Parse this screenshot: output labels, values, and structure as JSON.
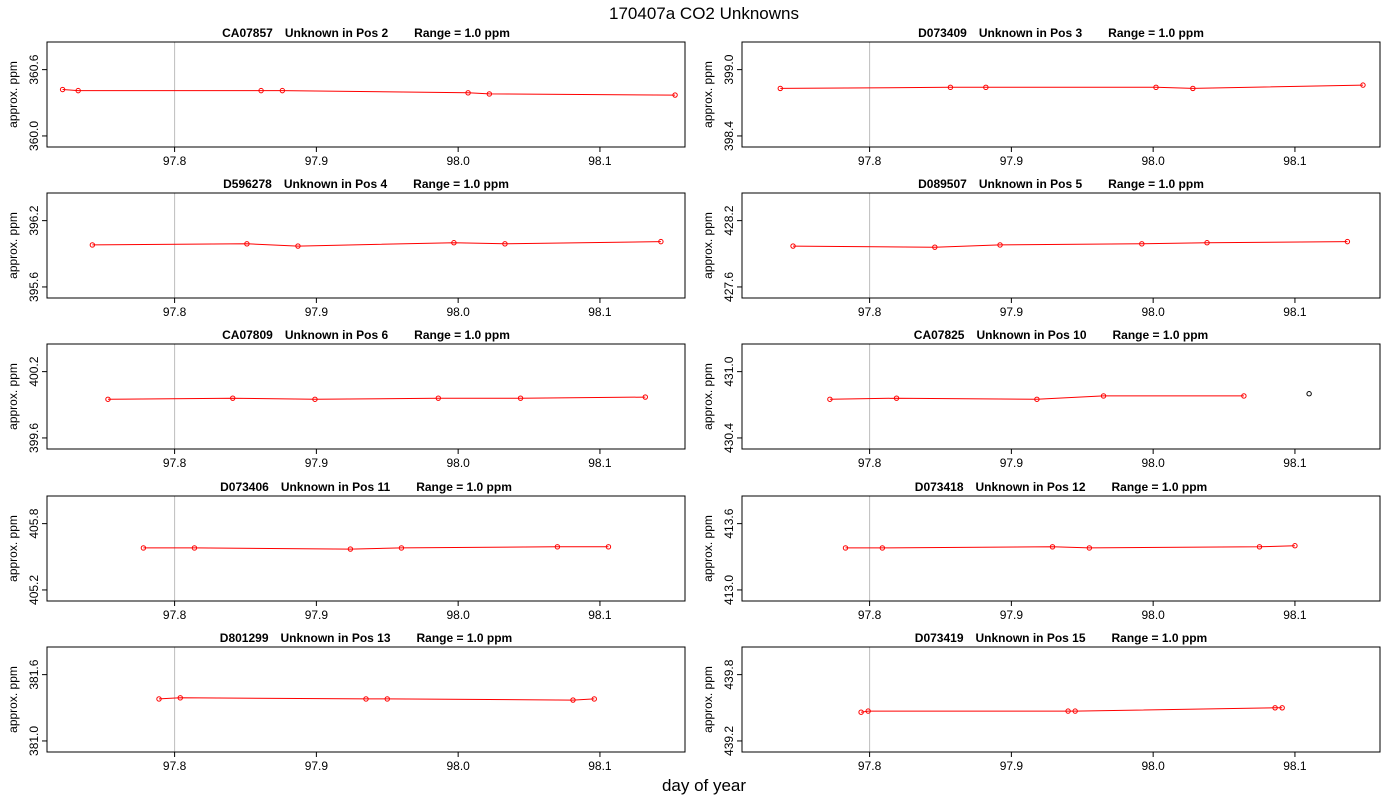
{
  "title": "170407a  CO2 Unknowns",
  "xlabel": "day of year",
  "colors": {
    "series": "#ff0000",
    "frame": "#000000",
    "vline": "#bebebe"
  },
  "chart_data": [
    {
      "type": "line",
      "title_parts": [
        "CA07857",
        "Unknown in Pos 2",
        "Range = 1.0 ppm"
      ],
      "ylabel": "approx. ppm",
      "xlim": [
        97.71,
        98.16
      ],
      "ylim": [
        359.9,
        360.85
      ],
      "xticks": [
        97.8,
        97.9,
        98.0,
        98.1
      ],
      "xtick_labels": [
        "97.8",
        "97.9",
        "98.0",
        "98.1"
      ],
      "yticks": [
        360.0,
        360.6
      ],
      "ytick_labels": [
        "360.0",
        "360.6"
      ],
      "vlines": [
        97.8
      ],
      "x": [
        97.721,
        97.732,
        97.861,
        97.876,
        98.007,
        98.022,
        98.153
      ],
      "y": [
        360.42,
        360.41,
        360.41,
        360.41,
        360.39,
        360.38,
        360.37
      ]
    },
    {
      "type": "line",
      "title_parts": [
        "D073409",
        "Unknown in Pos 3",
        "Range = 1.0 ppm"
      ],
      "ylabel": "approx. ppm",
      "xlim": [
        97.71,
        98.16
      ],
      "ylim": [
        398.3,
        399.25
      ],
      "xticks": [
        97.8,
        97.9,
        98.0,
        98.1
      ],
      "xtick_labels": [
        "97.8",
        "97.9",
        "98.0",
        "98.1"
      ],
      "yticks": [
        398.4,
        399.0
      ],
      "ytick_labels": [
        "398.4",
        "399.0"
      ],
      "vlines": [
        97.8,
        98.16
      ],
      "x": [
        97.737,
        97.857,
        97.882,
        98.002,
        98.028,
        98.148
      ],
      "y": [
        398.83,
        398.84,
        398.84,
        398.84,
        398.83,
        398.86
      ]
    },
    {
      "type": "line",
      "title_parts": [
        "D596278",
        "Unknown in Pos 4",
        "Range = 1.0 ppm"
      ],
      "ylabel": "approx. ppm",
      "xlim": [
        97.71,
        98.16
      ],
      "ylim": [
        395.5,
        396.45
      ],
      "xticks": [
        97.8,
        97.9,
        98.0,
        98.1
      ],
      "xtick_labels": [
        "97.8",
        "97.9",
        "98.0",
        "98.1"
      ],
      "yticks": [
        395.6,
        396.2
      ],
      "ytick_labels": [
        "395.6",
        "396.2"
      ],
      "vlines": [
        97.8,
        98.16
      ],
      "x": [
        97.742,
        97.851,
        97.887,
        97.997,
        98.033,
        98.143
      ],
      "y": [
        395.98,
        395.99,
        395.97,
        396.0,
        395.99,
        396.01
      ]
    },
    {
      "type": "line",
      "title_parts": [
        "D089507",
        "Unknown in Pos 5",
        "Range = 1.0 ppm"
      ],
      "ylabel": "approx. ppm",
      "xlim": [
        97.71,
        98.16
      ],
      "ylim": [
        427.5,
        428.45
      ],
      "xticks": [
        97.8,
        97.9,
        98.0,
        98.1
      ],
      "xtick_labels": [
        "97.8",
        "97.9",
        "98.0",
        "98.1"
      ],
      "yticks": [
        427.6,
        428.2
      ],
      "ytick_labels": [
        "427.6",
        "428.2"
      ],
      "vlines": [
        97.8,
        98.16
      ],
      "x": [
        97.746,
        97.846,
        97.892,
        97.992,
        98.038,
        98.137
      ],
      "y": [
        427.97,
        427.96,
        427.98,
        427.99,
        428.0,
        428.01
      ]
    },
    {
      "type": "line",
      "title_parts": [
        "CA07809",
        "Unknown in Pos 6",
        "Range = 1.0 ppm"
      ],
      "ylabel": "approx. ppm",
      "xlim": [
        97.71,
        98.16
      ],
      "ylim": [
        399.5,
        400.45
      ],
      "xticks": [
        97.8,
        97.9,
        98.0,
        98.1
      ],
      "xtick_labels": [
        "97.8",
        "97.9",
        "98.0",
        "98.1"
      ],
      "yticks": [
        399.6,
        400.2
      ],
      "ytick_labels": [
        "399.6",
        "400.2"
      ],
      "vlines": [
        97.8,
        98.16
      ],
      "x": [
        97.753,
        97.841,
        97.899,
        97.986,
        98.044,
        98.132
      ],
      "y": [
        399.95,
        399.96,
        399.95,
        399.96,
        399.96,
        399.97
      ]
    },
    {
      "type": "line",
      "title_parts": [
        "CA07825",
        "Unknown in Pos 10",
        "Range = 1.0 ppm"
      ],
      "ylabel": "approx. ppm",
      "xlim": [
        97.71,
        98.16
      ],
      "ylim": [
        430.3,
        431.25
      ],
      "xticks": [
        97.8,
        97.9,
        98.0,
        98.1
      ],
      "xtick_labels": [
        "97.8",
        "97.9",
        "98.0",
        "98.1"
      ],
      "yticks": [
        430.4,
        431.0
      ],
      "ytick_labels": [
        "430.4",
        "431.0"
      ],
      "vlines": [
        97.8,
        98.16
      ],
      "x": [
        97.772,
        97.819,
        97.918,
        97.965,
        98.064
      ],
      "y": [
        430.75,
        430.76,
        430.75,
        430.78,
        430.78
      ],
      "extra_point": {
        "x": 98.11,
        "y": 430.8,
        "color": "#000000"
      }
    },
    {
      "type": "line",
      "title_parts": [
        "D073406",
        "Unknown in Pos 11",
        "Range = 1.0 ppm"
      ],
      "ylabel": "approx. ppm",
      "xlim": [
        97.71,
        98.16
      ],
      "ylim": [
        405.1,
        406.05
      ],
      "xticks": [
        97.8,
        97.9,
        98.0,
        98.1
      ],
      "xtick_labels": [
        "97.8",
        "97.9",
        "98.0",
        "98.1"
      ],
      "yticks": [
        405.2,
        405.8
      ],
      "ytick_labels": [
        "405.2",
        "405.8"
      ],
      "vlines": [
        97.8,
        98.16
      ],
      "x": [
        97.778,
        97.814,
        97.924,
        97.96,
        98.07,
        98.106
      ],
      "y": [
        405.58,
        405.58,
        405.57,
        405.58,
        405.59,
        405.59
      ]
    },
    {
      "type": "line",
      "title_parts": [
        "D073418",
        "Unknown in Pos 12",
        "Range = 1.0 ppm"
      ],
      "ylabel": "approx. ppm",
      "xlim": [
        97.71,
        98.16
      ],
      "ylim": [
        412.9,
        413.85
      ],
      "xticks": [
        97.8,
        97.9,
        98.0,
        98.1
      ],
      "xtick_labels": [
        "97.8",
        "97.9",
        "98.0",
        "98.1"
      ],
      "yticks": [
        413.0,
        413.6
      ],
      "ytick_labels": [
        "413.0",
        "413.6"
      ],
      "vlines": [
        97.8,
        98.16
      ],
      "x": [
        97.783,
        97.809,
        97.929,
        97.955,
        98.075,
        98.1
      ],
      "y": [
        413.38,
        413.38,
        413.39,
        413.38,
        413.39,
        413.4
      ]
    },
    {
      "type": "line",
      "title_parts": [
        "D801299",
        "Unknown in Pos 13",
        "Range = 1.0 ppm"
      ],
      "ylabel": "approx. ppm",
      "xlim": [
        97.71,
        98.16
      ],
      "ylim": [
        380.9,
        381.85
      ],
      "xticks": [
        97.8,
        97.9,
        98.0,
        98.1
      ],
      "xtick_labels": [
        "97.8",
        "97.9",
        "98.0",
        "98.1"
      ],
      "yticks": [
        381.0,
        381.6
      ],
      "ytick_labels": [
        "381.0",
        "381.6"
      ],
      "vlines": [
        97.8,
        98.16
      ],
      "x": [
        97.789,
        97.804,
        97.935,
        97.95,
        98.081,
        98.096
      ],
      "y": [
        381.38,
        381.39,
        381.38,
        381.38,
        381.37,
        381.38
      ]
    },
    {
      "type": "line",
      "title_parts": [
        "D073419",
        "Unknown in Pos 15",
        "Range = 1.0 ppm"
      ],
      "ylabel": "approx. ppm",
      "xlim": [
        97.71,
        98.16
      ],
      "ylim": [
        439.1,
        440.05
      ],
      "xticks": [
        97.8,
        97.9,
        98.0,
        98.1
      ],
      "xtick_labels": [
        "97.8",
        "97.9",
        "98.0",
        "98.1"
      ],
      "yticks": [
        439.2,
        439.8
      ],
      "ytick_labels": [
        "439.2",
        "439.8"
      ],
      "vlines": [
        97.8,
        98.16
      ],
      "x": [
        97.794,
        97.799,
        97.94,
        97.945,
        98.086,
        98.091
      ],
      "y": [
        439.46,
        439.47,
        439.47,
        439.47,
        439.5,
        439.5
      ]
    }
  ]
}
